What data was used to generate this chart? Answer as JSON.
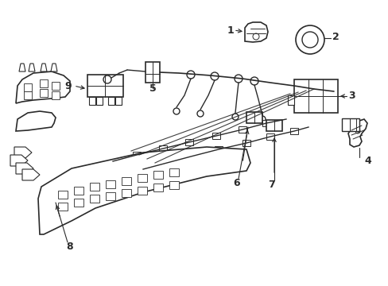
{
  "background_color": "#ffffff",
  "line_color": "#2a2a2a",
  "figsize": [
    4.89,
    3.6
  ],
  "dpi": 100,
  "components": {
    "label_fontsize": 9,
    "arrow_lw": 0.8
  }
}
